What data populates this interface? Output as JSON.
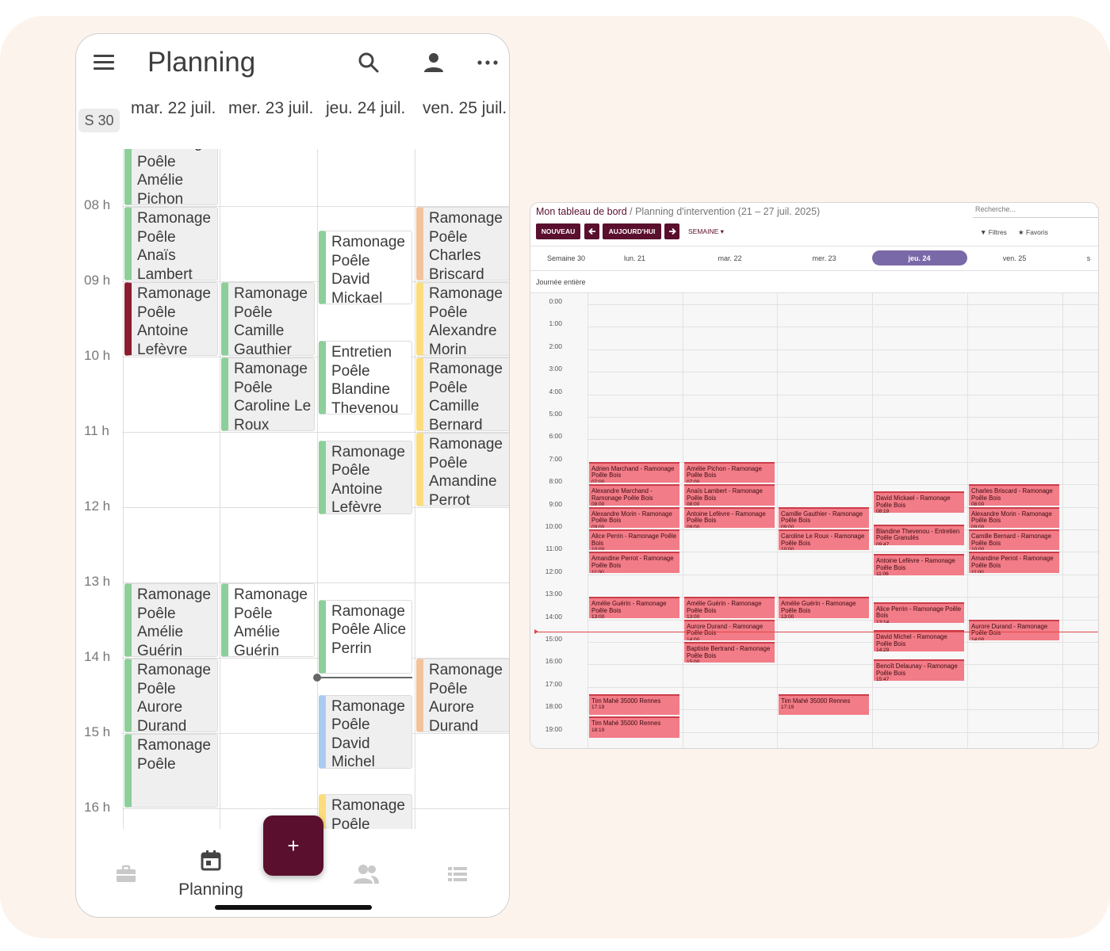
{
  "mobile": {
    "title": "Planning",
    "week_badge": "S 30",
    "days": [
      "mar. 22 juil.",
      "mer. 23 juil.",
      "jeu. 24 juil.",
      "ven. 25 juil."
    ],
    "hours": [
      "08 h",
      "09 h",
      "10 h",
      "11 h",
      "12 h",
      "13 h",
      "14 h",
      "15 h",
      "16 h"
    ],
    "events": [
      {
        "col": 0,
        "start": 7.0,
        "end": 8.0,
        "color": "green",
        "text": "Ramonage Poêle Amélie Pichon"
      },
      {
        "col": 0,
        "start": 8.0,
        "end": 9.0,
        "color": "green",
        "text": "Ramonage Poêle Anaïs Lambert"
      },
      {
        "col": 0,
        "start": 9.0,
        "end": 10.0,
        "color": "maroon",
        "text": "Ramonage Poêle Antoine Lefèvre"
      },
      {
        "col": 0,
        "start": 13.0,
        "end": 14.0,
        "color": "green",
        "text": "Ramonage Poêle Amélie Guérin"
      },
      {
        "col": 0,
        "start": 14.0,
        "end": 15.0,
        "color": "green",
        "text": "Ramonage Poêle Aurore Durand"
      },
      {
        "col": 0,
        "start": 15.0,
        "end": 16.0,
        "color": "green",
        "text": "Ramonage Poêle"
      },
      {
        "col": 1,
        "start": 9.0,
        "end": 10.0,
        "color": "green",
        "text": "Ramonage Poêle Camille Gauthier"
      },
      {
        "col": 1,
        "start": 10.0,
        "end": 11.0,
        "color": "green",
        "text": "Ramonage Poêle Caroline Le Roux"
      },
      {
        "col": 1,
        "start": 13.0,
        "end": 14.0,
        "color": "green",
        "text": "Ramonage Poêle Amélie Guérin",
        "white": true
      },
      {
        "col": 2,
        "start": 8.32,
        "end": 9.32,
        "color": "green",
        "text": "Ramonage Poêle David Mickael",
        "white": true
      },
      {
        "col": 2,
        "start": 9.78,
        "end": 10.78,
        "color": "green",
        "text": "Entretien Poêle Blandine Thevenou",
        "white": true
      },
      {
        "col": 2,
        "start": 11.1,
        "end": 12.1,
        "color": "green",
        "text": "Ramonage Poêle Antoine Lefèvre"
      },
      {
        "col": 2,
        "start": 13.22,
        "end": 14.22,
        "color": "green",
        "text": "Ramonage Poêle Alice Perrin",
        "white": true
      },
      {
        "col": 2,
        "start": 14.48,
        "end": 15.48,
        "color": "blue",
        "text": "Ramonage Poêle David Michel"
      },
      {
        "col": 2,
        "start": 15.8,
        "end": 16.8,
        "color": "yellow",
        "text": "Ramonage Poêle"
      },
      {
        "col": 3,
        "start": 8.0,
        "end": 9.0,
        "color": "peach",
        "text": "Ramonage Poêle Charles Briscard"
      },
      {
        "col": 3,
        "start": 9.0,
        "end": 10.0,
        "color": "yellow",
        "text": "Ramonage Poêle Alexandre Morin"
      },
      {
        "col": 3,
        "start": 10.0,
        "end": 11.0,
        "color": "yellow",
        "text": "Ramonage Poêle Camille Bernard"
      },
      {
        "col": 3,
        "start": 11.0,
        "end": 12.0,
        "color": "yellow",
        "text": "Ramonage Poêle Amandine Perrot"
      },
      {
        "col": 3,
        "start": 14.0,
        "end": 15.0,
        "color": "peach",
        "text": "Ramonage Poêle Aurore Durand"
      }
    ],
    "now_hour": 14.25,
    "nav": {
      "planning_label": "Planning",
      "fab_label": "+"
    }
  },
  "desktop": {
    "breadcrumb_root": "Mon tableau de bord",
    "breadcrumb_sep": " / ",
    "breadcrumb_current": "Planning d'intervention (21 – 27 juil. 2025)",
    "search_placeholder": "Recherche...",
    "buttons": {
      "nouveau": "NOUVEAU",
      "prev": "🡐",
      "today": "AUJOURD'HUI",
      "next": "🡒"
    },
    "view_mode": "SEMAINE ▾",
    "filters": "Filtres",
    "favoris": "Favoris",
    "week_label": "Semaine 30",
    "days": [
      "lun. 21",
      "mar. 22",
      "mer. 23",
      "jeu. 24",
      "ven. 25",
      "s"
    ],
    "today_index": 3,
    "allday_label": "Journée entière",
    "hours": [
      "0:00",
      "1:00",
      "2:00",
      "3:00",
      "4:00",
      "5:00",
      "6:00",
      "7:00",
      "8:00",
      "9:00",
      "10:00",
      "11:00",
      "12:00",
      "13:00",
      "14:00",
      "15:00",
      "16:00",
      "17:00",
      "18:00",
      "19:00"
    ],
    "now_hour": 14.55,
    "events": [
      {
        "col": 0,
        "start": 7.0,
        "title": "Adrien Marchand - Ramonage Poêle Bois",
        "time": "07:00"
      },
      {
        "col": 0,
        "start": 8.0,
        "title": "Alexandre Marchand - Ramonage Poêle Bois",
        "time": "08:00"
      },
      {
        "col": 0,
        "start": 9.0,
        "title": "Alexandre Morin - Ramonage Poêle Bois",
        "time": "09:00"
      },
      {
        "col": 0,
        "start": 10.0,
        "title": "Alice Perrin - Ramonage Poêle Bois",
        "time": "10:00"
      },
      {
        "col": 0,
        "start": 11.0,
        "title": "Amandine Perrot - Ramonage Poêle Bois",
        "time": "11:00"
      },
      {
        "col": 0,
        "start": 13.0,
        "title": "Amélie Guérin - Ramonage Poêle Bois",
        "time": "13:00"
      },
      {
        "col": 0,
        "start": 17.32,
        "title": "Tim Mahé 35000 Rennes",
        "time": "17:19"
      },
      {
        "col": 0,
        "start": 18.32,
        "title": "Tim Mahé 35000 Rennes",
        "time": "18:19"
      },
      {
        "col": 1,
        "start": 7.0,
        "title": "Amélie Pichon - Ramonage Poêle Bois",
        "time": "07:00"
      },
      {
        "col": 1,
        "start": 8.0,
        "title": "Anaïs Lambert - Ramonage Poêle Bois",
        "time": "08:00"
      },
      {
        "col": 1,
        "start": 9.0,
        "title": "Antoine Lefèvre - Ramonage Poêle Bois",
        "time": "09:00"
      },
      {
        "col": 1,
        "start": 13.0,
        "title": "Amélie Guérin - Ramonage Poêle Bois",
        "time": "13:00"
      },
      {
        "col": 1,
        "start": 14.0,
        "title": "Aurore Durand - Ramonage Poêle Bois",
        "time": "14:00"
      },
      {
        "col": 1,
        "start": 15.0,
        "title": "Baptiste Bertrand - Ramonage Poêle Bois",
        "time": "15:00"
      },
      {
        "col": 2,
        "start": 9.0,
        "title": "Camille Gauthier - Ramonage Poêle Bois",
        "time": "09:00"
      },
      {
        "col": 2,
        "start": 10.0,
        "title": "Caroline Le Roux - Ramonage Poêle Bois",
        "time": "10:00"
      },
      {
        "col": 2,
        "start": 13.0,
        "title": "Amélie Guérin - Ramonage Poêle Bois",
        "time": "13:00"
      },
      {
        "col": 2,
        "start": 17.32,
        "title": "Tim Mahé 35000 Rennes",
        "time": "17:19"
      },
      {
        "col": 3,
        "start": 8.32,
        "title": "David Mickael - Ramonage Poêle Bois",
        "time": "08:19"
      },
      {
        "col": 3,
        "start": 9.78,
        "title": "Blandine Thevenou - Entretien Poêle Granulés",
        "time": "09:47"
      },
      {
        "col": 3,
        "start": 11.1,
        "title": "Antoine Lefèvre - Ramonage Poêle Bois",
        "time": "11:06"
      },
      {
        "col": 3,
        "start": 13.23,
        "title": "Alice Perrin - Ramonage Poêle Bois",
        "time": "13:14"
      },
      {
        "col": 3,
        "start": 14.48,
        "title": "David Michel - Ramonage Poêle Bois",
        "time": "14:29"
      },
      {
        "col": 3,
        "start": 15.78,
        "title": "Benoît Delaunay - Ramonage Poêle Bois",
        "time": "15:47"
      },
      {
        "col": 4,
        "start": 8.0,
        "title": "Charles Briscard - Ramonage Poêle Bois",
        "time": "08:00"
      },
      {
        "col": 4,
        "start": 9.0,
        "title": "Alexandre Morin - Ramonage Poêle Bois",
        "time": "09:00"
      },
      {
        "col": 4,
        "start": 10.0,
        "title": "Camille Bernard - Ramonage Poêle Bois",
        "time": "10:00"
      },
      {
        "col": 4,
        "start": 11.0,
        "title": "Amandine Perrot - Ramonage Poêle Bois",
        "time": "11:00"
      },
      {
        "col": 4,
        "start": 14.0,
        "title": "Aurore Durand - Ramonage Poêle Bois",
        "time": "14:00"
      }
    ]
  },
  "colors": {
    "brand": "#5a0f2e",
    "green": "#8ccf9a",
    "maroon": "#8c1c30",
    "peach": "#f3c39c",
    "yellow": "#fbdd7d",
    "blue": "#a9cbef",
    "desktop_event": "#f27c87",
    "today_pill": "#7a69a8"
  }
}
